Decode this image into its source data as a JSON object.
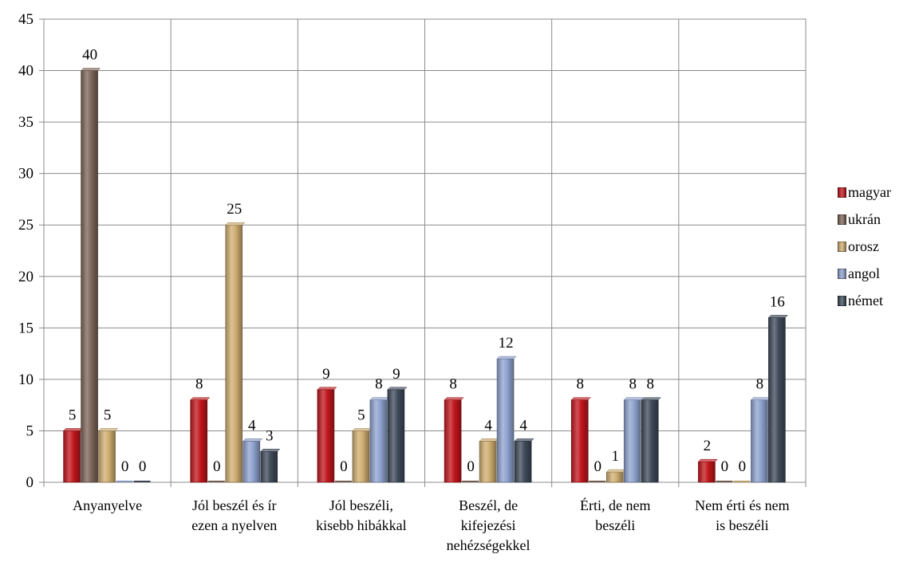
{
  "chart_data": {
    "type": "bar",
    "categories": [
      [
        "Anyanyelve"
      ],
      [
        "Jól beszél és ír",
        "ezen a nyelven"
      ],
      [
        "Jól beszéli,",
        "kisebb hibákkal"
      ],
      [
        "Beszél, de",
        "kifejezési",
        "nehézségekkel"
      ],
      [
        "Érti, de nem",
        "beszéli"
      ],
      [
        "Nem érti és nem",
        "is beszéli"
      ]
    ],
    "series": [
      {
        "name": "magyar",
        "color": "#c0161c",
        "values": [
          5,
          8,
          9,
          8,
          8,
          2
        ]
      },
      {
        "name": "ukrán",
        "color": "#7d655a",
        "values": [
          40,
          0,
          0,
          0,
          0,
          0
        ]
      },
      {
        "name": "orosz",
        "color": "#cfae71",
        "values": [
          5,
          25,
          5,
          4,
          1,
          0
        ]
      },
      {
        "name": "angol",
        "color": "#8fa3cf",
        "values": [
          0,
          4,
          8,
          12,
          8,
          8
        ]
      },
      {
        "name": "német",
        "color": "#3f4a5a",
        "values": [
          0,
          3,
          9,
          4,
          8,
          16
        ]
      }
    ],
    "value_labels": [
      [
        "5",
        "40",
        "5",
        "0",
        "0"
      ],
      [
        "8",
        "0",
        "25",
        "4",
        "3"
      ],
      [
        "9",
        "0",
        "5",
        "8",
        "9"
      ],
      [
        "8",
        "0",
        "4",
        "12",
        "4"
      ],
      [
        "8",
        "0",
        "1",
        "8",
        "8"
      ],
      [
        "2",
        "0",
        "0",
        "8",
        "16"
      ]
    ],
    "ylim": [
      0,
      45
    ],
    "yticks": [
      "0",
      "5",
      "10",
      "15",
      "20",
      "25",
      "30",
      "35",
      "40",
      "45"
    ],
    "grid": true,
    "legend": "right",
    "title": "",
    "xlabel": "",
    "ylabel": ""
  }
}
